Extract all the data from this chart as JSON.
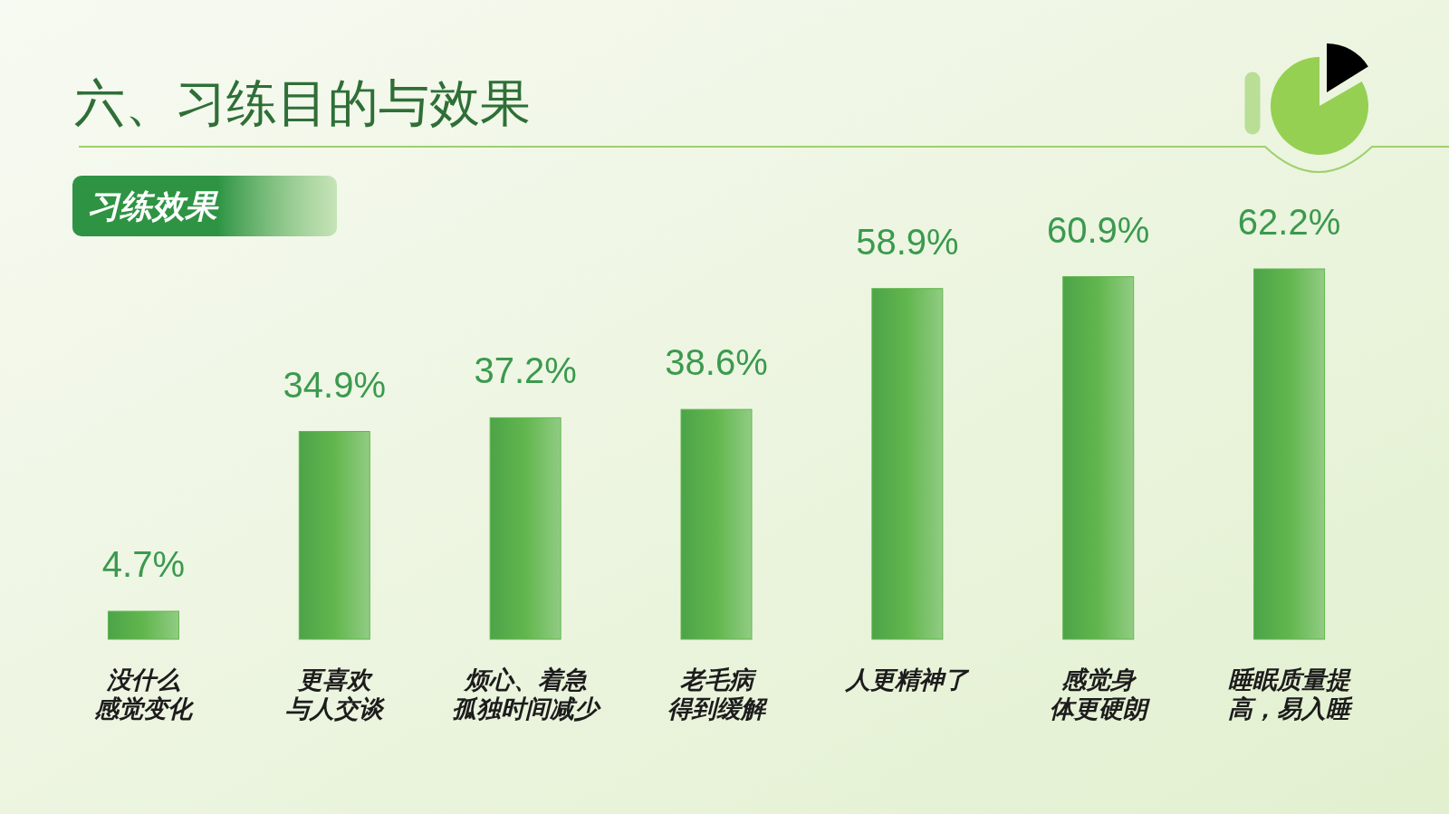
{
  "chart_data": {
    "type": "bar",
    "title": "六、习练目的与效果",
    "subtitle": "习练效果",
    "categories": [
      "没什么感觉变化",
      "更喜欢与人交谈",
      "烦心、着急孤独时间减少",
      "老毛病得到缓解",
      "人更精神了",
      "感觉身体更硬朗",
      "睡眠质量提高，易入睡"
    ],
    "values": [
      4.7,
      34.9,
      37.2,
      38.6,
      58.9,
      60.9,
      62.2
    ],
    "value_labels": [
      "4.7%",
      "34.9%",
      "37.2%",
      "38.6%",
      "58.9%",
      "60.9%",
      "62.2%"
    ],
    "color": "#62b64e"
  }
}
